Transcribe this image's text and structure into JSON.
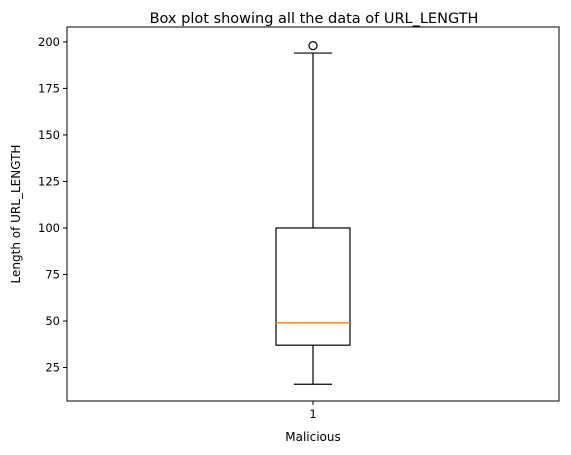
{
  "chart_data": {
    "type": "box",
    "title": "Box plot showing all the data of URL_LENGTH",
    "xlabel": "Malicious",
    "ylabel": "Length of URL_LENGTH",
    "categories": [
      "1"
    ],
    "ylim": [
      7,
      208
    ],
    "yticks": [
      25,
      50,
      75,
      100,
      125,
      150,
      175,
      200
    ],
    "grid": false,
    "boxes": [
      {
        "category": "1",
        "whisker_low": 16,
        "q1": 37,
        "median": 49,
        "q3": 100,
        "whisker_high": 194,
        "outliers": [
          198
        ]
      }
    ],
    "colors": {
      "box": "#000000",
      "median": "#ff7f0e",
      "axes": "#000000"
    }
  }
}
